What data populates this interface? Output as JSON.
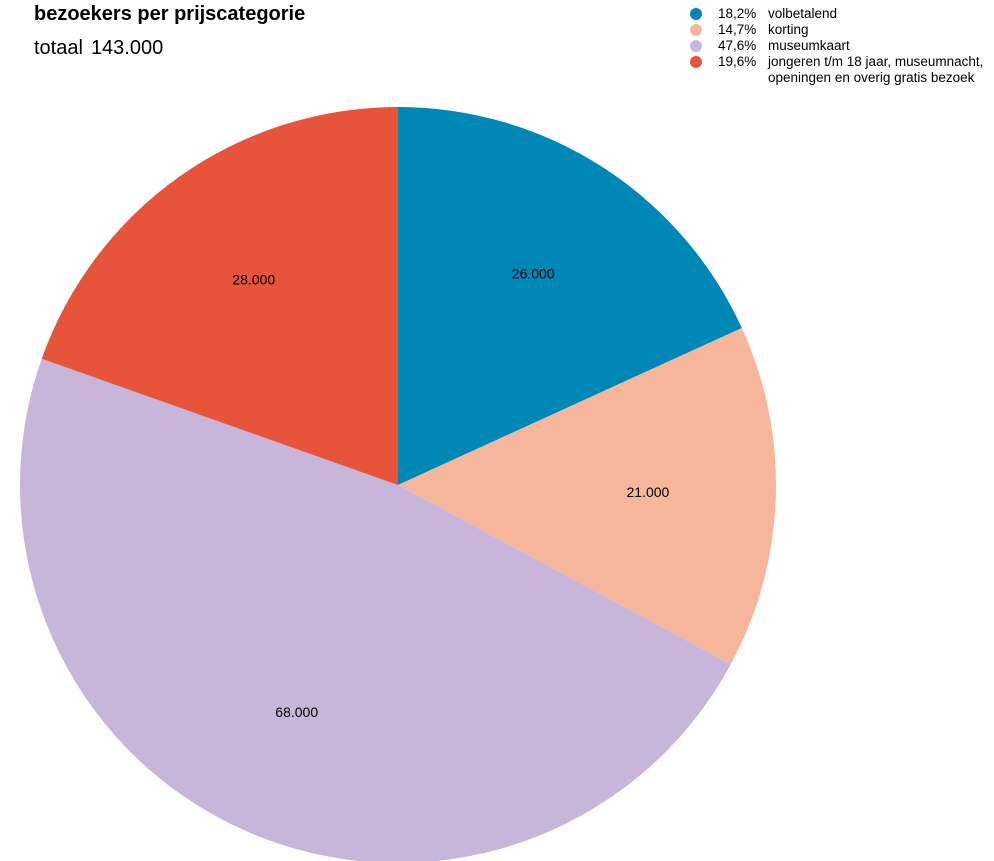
{
  "chart_data": {
    "type": "pie",
    "title": "bezoekers per prijscategorie",
    "subtitle_label": "totaal",
    "subtitle_value": "143.000",
    "total": 143000,
    "start": "top",
    "direction": "clockwise",
    "legend_position": "top-right",
    "slices": [
      {
        "value": 26000,
        "value_label": "26.000",
        "percent_label": "18,2%",
        "name": "volbetalend",
        "color": "#0087b5"
      },
      {
        "value": 21000,
        "value_label": "21.000",
        "percent_label": "14,7%",
        "name": "korting",
        "color": "#f5b69c"
      },
      {
        "value": 68000,
        "value_label": "68.000",
        "percent_label": "47,6%",
        "name": "museumkaart",
        "color": "#c8b6da"
      },
      {
        "value": 28000,
        "value_label": "28.000",
        "percent_label": "19,6%",
        "name": "jongeren t/m 18 jaar, museumnacht, openingen en overig gratis bezoek",
        "color": "#e8543a"
      }
    ]
  }
}
